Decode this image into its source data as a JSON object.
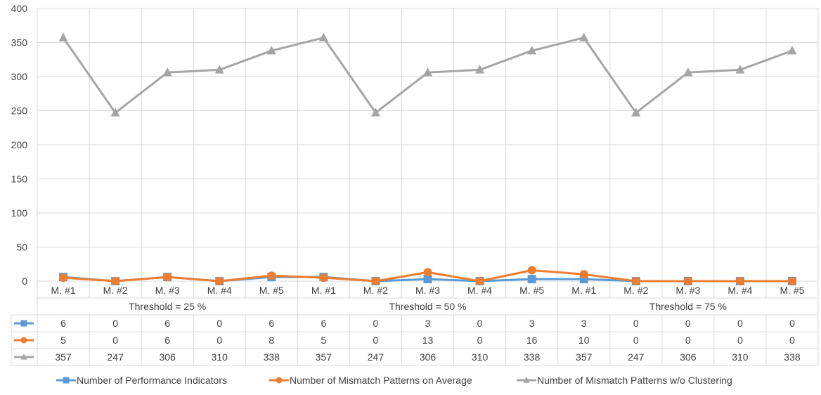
{
  "chart_data": {
    "type": "line",
    "ylim": [
      0,
      400
    ],
    "yticks": [
      0,
      50,
      100,
      150,
      200,
      250,
      300,
      350,
      400
    ],
    "groups": [
      "Threshold = 25 %",
      "Threshold = 50 %",
      "Threshold = 75 %"
    ],
    "categories": [
      "M. #1",
      "M. #2",
      "M. #3",
      "M. #4",
      "M. #5",
      "M. #1",
      "M. #2",
      "M. #3",
      "M. #4",
      "M. #5",
      "M. #1",
      "M. #2",
      "M. #3",
      "M. #4",
      "M. #5"
    ],
    "series": [
      {
        "name": "Number of Performance Indicators",
        "color": "#5b9bd5",
        "marker": "square",
        "values": [
          6,
          0,
          6,
          0,
          6,
          6,
          0,
          3,
          0,
          3,
          3,
          0,
          0,
          0,
          0
        ]
      },
      {
        "name": "Number of Mismatch Patterns on Average",
        "color": "#ed7d31",
        "marker": "circle",
        "values": [
          5,
          0,
          6,
          0,
          8,
          5,
          0,
          13,
          0,
          16,
          10,
          0,
          0,
          0,
          0
        ]
      },
      {
        "name": "Number of Mismatch Patterns w/o Clustering",
        "color": "#a5a5a5",
        "marker": "triangle",
        "values": [
          357,
          247,
          306,
          310,
          338,
          357,
          247,
          306,
          310,
          338,
          357,
          247,
          306,
          310,
          338
        ]
      }
    ],
    "grid": true,
    "legend": "bottom",
    "data_table": true
  }
}
